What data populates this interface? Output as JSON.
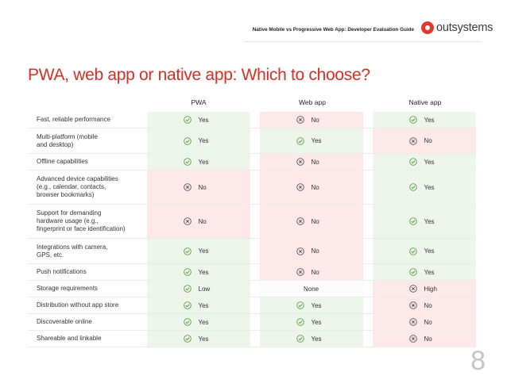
{
  "header": {
    "guide_title": "Native Mobile vs Progressive Web App: Developer Evaluation Guide",
    "logo_text": "outsystems"
  },
  "page_title": "PWA, web app or native app: Which to choose?",
  "columns": [
    "PWA",
    "Web app",
    "Native app"
  ],
  "rows": [
    {
      "label": "Fast, reliable performance",
      "h": 0,
      "cells": [
        {
          "text": "Yes",
          "icon": "check-icon",
          "tone": "green"
        },
        {
          "text": "No",
          "icon": "cross-icon",
          "tone": "red"
        },
        {
          "text": "Yes",
          "icon": "check-icon",
          "tone": "green"
        }
      ]
    },
    {
      "label": "Multi-platform (mobile\nand desktop)",
      "h": 1,
      "cells": [
        {
          "text": "Yes",
          "icon": "check-icon",
          "tone": "green"
        },
        {
          "text": "Yes",
          "icon": "check-icon",
          "tone": "green"
        },
        {
          "text": "No",
          "icon": "cross-icon",
          "tone": "red"
        }
      ]
    },
    {
      "label": "Offline capabilities",
      "h": 0,
      "cells": [
        {
          "text": "Yes",
          "icon": "check-icon",
          "tone": "green"
        },
        {
          "text": "No",
          "icon": "cross-icon",
          "tone": "red"
        },
        {
          "text": "Yes",
          "icon": "check-icon",
          "tone": "green"
        }
      ]
    },
    {
      "label": "Advanced device capabilities\n(e.g., calendar, contacts,\nbrowser bookmarks)",
      "h": 2,
      "cells": [
        {
          "text": "No",
          "icon": "cross-icon",
          "tone": "red"
        },
        {
          "text": "No",
          "icon": "cross-icon",
          "tone": "red"
        },
        {
          "text": "Yes",
          "icon": "check-icon",
          "tone": "green"
        }
      ]
    },
    {
      "label": "Support for demanding\nhardware usage (e.g.,\nfingerprint or face identification)",
      "h": 2,
      "cells": [
        {
          "text": "No",
          "icon": "cross-icon",
          "tone": "red"
        },
        {
          "text": "No",
          "icon": "cross-icon",
          "tone": "red"
        },
        {
          "text": "Yes",
          "icon": "check-icon",
          "tone": "green"
        }
      ]
    },
    {
      "label": "Integrations with camera,\nGPS, etc.",
      "h": 1,
      "cells": [
        {
          "text": "Yes",
          "icon": "check-icon",
          "tone": "green"
        },
        {
          "text": "No",
          "icon": "cross-icon",
          "tone": "red"
        },
        {
          "text": "Yes",
          "icon": "check-icon",
          "tone": "green"
        }
      ]
    },
    {
      "label": "Push notifications",
      "h": 0,
      "cells": [
        {
          "text": "Yes",
          "icon": "check-icon",
          "tone": "green"
        },
        {
          "text": "No",
          "icon": "cross-icon",
          "tone": "red"
        },
        {
          "text": "Yes",
          "icon": "check-icon",
          "tone": "green"
        }
      ]
    },
    {
      "label": "Storage requirements",
      "h": 0,
      "cells": [
        {
          "text": "Low",
          "icon": "check-icon",
          "tone": "green"
        },
        {
          "text": "None",
          "icon": "",
          "tone": "neutral"
        },
        {
          "text": "High",
          "icon": "cross-icon",
          "tone": "red"
        }
      ]
    },
    {
      "label": "Distribution without app store",
      "h": 0,
      "cells": [
        {
          "text": "Yes",
          "icon": "check-icon",
          "tone": "green"
        },
        {
          "text": "Yes",
          "icon": "check-icon",
          "tone": "green"
        },
        {
          "text": "No",
          "icon": "cross-icon",
          "tone": "red"
        }
      ]
    },
    {
      "label": "Discoverable online",
      "h": 0,
      "cells": [
        {
          "text": "Yes",
          "icon": "check-icon",
          "tone": "green"
        },
        {
          "text": "Yes",
          "icon": "check-icon",
          "tone": "green"
        },
        {
          "text": "No",
          "icon": "cross-icon",
          "tone": "red"
        }
      ]
    },
    {
      "label": "Shareable and linkable",
      "h": 0,
      "cells": [
        {
          "text": "Yes",
          "icon": "check-icon",
          "tone": "green"
        },
        {
          "text": "Yes",
          "icon": "check-icon",
          "tone": "green"
        },
        {
          "text": "No",
          "icon": "cross-icon",
          "tone": "red"
        }
      ]
    }
  ],
  "page_number": "8",
  "colors": {
    "accent": "#d62e23",
    "yes_bg": "#eef5eb",
    "no_bg": "#fde9ea",
    "check": "#5f9b4a",
    "cross": "#555555"
  }
}
